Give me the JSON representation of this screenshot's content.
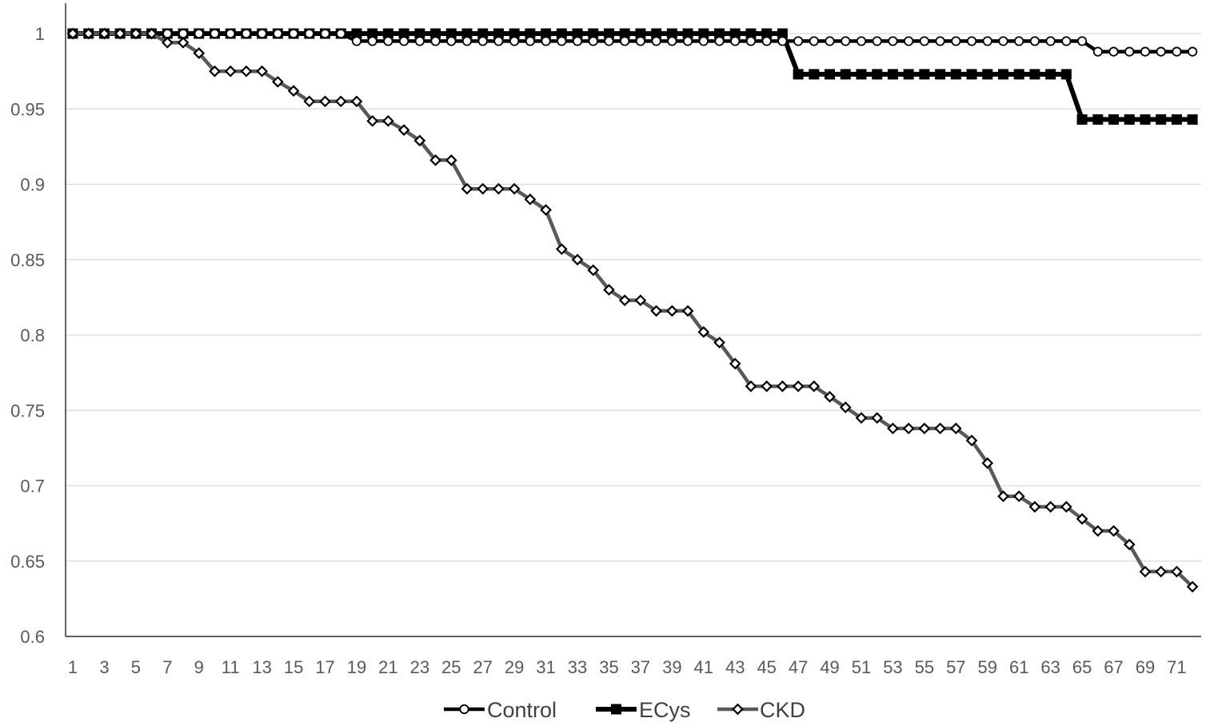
{
  "chart_data": {
    "type": "line",
    "title": "",
    "xlabel": "",
    "ylabel": "",
    "ylim": [
      0.6,
      1.0
    ],
    "y_ticks": [
      "0.6",
      "0.65",
      "0.7",
      "0.75",
      "0.8",
      "0.85",
      "0.9",
      "0.95",
      "1"
    ],
    "x_tick_labels": [
      "1",
      "3",
      "5",
      "7",
      "9",
      "11",
      "13",
      "15",
      "17",
      "19",
      "21",
      "23",
      "25",
      "27",
      "29",
      "31",
      "33",
      "35",
      "37",
      "39",
      "41",
      "43",
      "45",
      "47",
      "49",
      "51",
      "53",
      "55",
      "57",
      "59",
      "61",
      "63",
      "65",
      "67",
      "69",
      "71"
    ],
    "x": [
      1,
      2,
      3,
      4,
      5,
      6,
      7,
      8,
      9,
      10,
      11,
      12,
      13,
      14,
      15,
      16,
      17,
      18,
      19,
      20,
      21,
      22,
      23,
      24,
      25,
      26,
      27,
      28,
      29,
      30,
      31,
      32,
      33,
      34,
      35,
      36,
      37,
      38,
      39,
      40,
      41,
      42,
      43,
      44,
      45,
      46,
      47,
      48,
      49,
      50,
      51,
      52,
      53,
      54,
      55,
      56,
      57,
      58,
      59,
      60,
      61,
      62,
      63,
      64,
      65,
      66,
      67,
      68,
      69,
      70,
      71,
      72
    ],
    "grid": "horizontal",
    "legend_position": "bottom",
    "series": [
      {
        "name": "Control",
        "color": "#000000",
        "marker": "circle-open",
        "values": [
          1,
          1,
          1,
          1,
          1,
          1,
          1,
          1,
          1,
          1,
          1,
          1,
          1,
          1,
          1,
          1,
          1,
          1,
          0.995,
          0.995,
          0.995,
          0.995,
          0.995,
          0.995,
          0.995,
          0.995,
          0.995,
          0.995,
          0.995,
          0.995,
          0.995,
          0.995,
          0.995,
          0.995,
          0.995,
          0.995,
          0.995,
          0.995,
          0.995,
          0.995,
          0.995,
          0.995,
          0.995,
          0.995,
          0.995,
          0.995,
          0.995,
          0.995,
          0.995,
          0.995,
          0.995,
          0.995,
          0.995,
          0.995,
          0.995,
          0.995,
          0.995,
          0.995,
          0.995,
          0.995,
          0.995,
          0.995,
          0.995,
          0.995,
          0.995,
          0.988,
          0.988,
          0.988,
          0.988,
          0.988,
          0.988,
          0.988
        ]
      },
      {
        "name": "ECys",
        "color": "#000000",
        "marker": "square-filled",
        "values": [
          1,
          1,
          1,
          1,
          1,
          1,
          1,
          1,
          1,
          1,
          1,
          1,
          1,
          1,
          1,
          1,
          1,
          1,
          1,
          1,
          1,
          1,
          1,
          1,
          1,
          1,
          1,
          1,
          1,
          1,
          1,
          1,
          1,
          1,
          1,
          1,
          1,
          1,
          1,
          1,
          1,
          1,
          1,
          1,
          1,
          1,
          0.973,
          0.973,
          0.973,
          0.973,
          0.973,
          0.973,
          0.973,
          0.973,
          0.973,
          0.973,
          0.973,
          0.973,
          0.973,
          0.973,
          0.973,
          0.973,
          0.973,
          0.973,
          0.943,
          0.943,
          0.943,
          0.943,
          0.943,
          0.943,
          0.943,
          0.943
        ]
      },
      {
        "name": "CKD",
        "color": "#595959",
        "marker": "diamond-open",
        "values": [
          1,
          1,
          1,
          1,
          1,
          1,
          0.994,
          0.994,
          0.987,
          0.975,
          0.975,
          0.975,
          0.975,
          0.968,
          0.962,
          0.955,
          0.955,
          0.955,
          0.955,
          0.942,
          0.942,
          0.936,
          0.929,
          0.916,
          0.916,
          0.897,
          0.897,
          0.897,
          0.897,
          0.89,
          0.883,
          0.857,
          0.85,
          0.843,
          0.83,
          0.823,
          0.823,
          0.816,
          0.816,
          0.816,
          0.802,
          0.795,
          0.781,
          0.766,
          0.766,
          0.766,
          0.766,
          0.766,
          0.759,
          0.752,
          0.745,
          0.745,
          0.738,
          0.738,
          0.738,
          0.738,
          0.738,
          0.73,
          0.715,
          0.693,
          0.693,
          0.686,
          0.686,
          0.686,
          0.678,
          0.67,
          0.67,
          0.661,
          0.643,
          0.643,
          0.643,
          0.633
        ]
      }
    ]
  }
}
